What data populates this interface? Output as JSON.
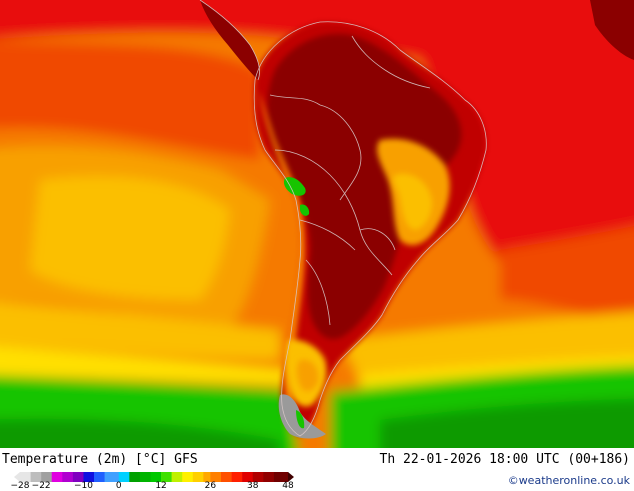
{
  "map": {
    "product": "Temperature (2m) [°C] GFS",
    "valid_time": "Th 22-01-2026 18:00 UTC (00+186)",
    "credit": "©weatheronline.co.uk",
    "colors": {
      "very_hot": "#8b0000",
      "hot": "#c00000",
      "warm_red": "#e81010",
      "orange_red": "#f04a00",
      "orange": "#f57a00",
      "light_orange": "#f8a000",
      "yellow_orange": "#fbbf00",
      "yellow": "#ffe000",
      "green": "#16c400",
      "dark_green": "#0a9a00",
      "gray": "#9a9a9a"
    }
  },
  "legend": {
    "tick_labels": [
      "-28",
      "-22",
      "-10",
      "0",
      "12",
      "26",
      "38",
      "48"
    ],
    "stops": [
      {
        "value": -28,
        "color": "#e6e6e6"
      },
      {
        "value": -25,
        "color": "#bdbdbd"
      },
      {
        "value": -22,
        "color": "#a0a0a0"
      },
      {
        "value": -19,
        "color": "#e000e0"
      },
      {
        "value": -16,
        "color": "#b000d0"
      },
      {
        "value": -13,
        "color": "#8000c0"
      },
      {
        "value": -10,
        "color": "#1010e0"
      },
      {
        "value": -7,
        "color": "#2060ff"
      },
      {
        "value": -4,
        "color": "#40a0ff"
      },
      {
        "value": 0,
        "color": "#00d0ff"
      },
      {
        "value": 3,
        "color": "#00a000"
      },
      {
        "value": 6,
        "color": "#00b400"
      },
      {
        "value": 9,
        "color": "#00c800"
      },
      {
        "value": 12,
        "color": "#40e000"
      },
      {
        "value": 15,
        "color": "#c0f000"
      },
      {
        "value": 18,
        "color": "#fff000"
      },
      {
        "value": 21,
        "color": "#ffd000"
      },
      {
        "value": 24,
        "color": "#ffa800"
      },
      {
        "value": 26,
        "color": "#ff8000"
      },
      {
        "value": 29,
        "color": "#ff5000"
      },
      {
        "value": 32,
        "color": "#ff2000"
      },
      {
        "value": 35,
        "color": "#e00000"
      },
      {
        "value": 38,
        "color": "#b00000"
      },
      {
        "value": 41,
        "color": "#900000"
      },
      {
        "value": 44,
        "color": "#700000"
      },
      {
        "value": 48,
        "color": "#400000"
      }
    ]
  }
}
